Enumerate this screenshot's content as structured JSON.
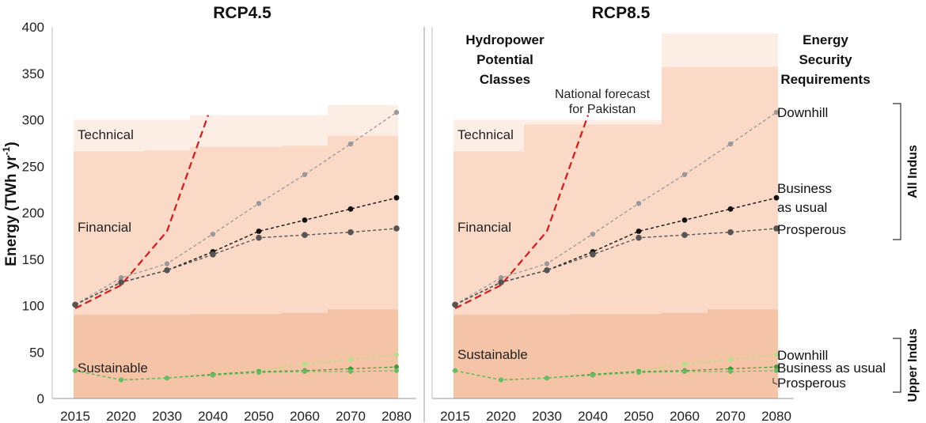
{
  "chart_data": {
    "type": "line",
    "ylabel": "Energy (TWh yr",
    "ylabel_sup": "-1",
    "ylabel_close": ")",
    "ylim": [
      0,
      400
    ],
    "yticks": [
      0,
      50,
      100,
      150,
      200,
      250,
      300,
      350,
      400
    ],
    "categories": [
      "2015",
      "2020",
      "2030",
      "2040",
      "2050",
      "2060",
      "2070",
      "2080"
    ],
    "colors": {
      "technical": "#fdeee5",
      "financial": "#fad9c6",
      "sustainable": "#f5c4a6",
      "forecast": "#d7191c",
      "downhill": "#999999",
      "business": "#111111",
      "prosperous": "#555555",
      "green_light": "#b2df8a",
      "green_mid": "#66bd63",
      "green_dark": "#4a9a3a"
    },
    "band_labels": {
      "technical": "Technical",
      "financial": "Financial",
      "sustainable": "Sustainable"
    },
    "forecast_label": [
      "National forecast",
      "for Pakistan"
    ],
    "classes_label": [
      "Hydropower",
      "Potential",
      "Classes"
    ],
    "requirements_label": [
      "Energy",
      "Security",
      "Requirements"
    ],
    "scenario_labels": {
      "all_downhill": "Downhill",
      "all_business": [
        "Business",
        "as usual"
      ],
      "all_prosperous": "Prosperous",
      "upper_downhill": "Downhill",
      "upper_business": "Business as usual",
      "upper_prosperous": "Prosperous"
    },
    "region_labels": {
      "all": "All Indus",
      "upper": "Upper Indus"
    },
    "forecast": {
      "x": [
        "2015",
        "2020",
        "2030",
        "2040"
      ],
      "values": [
        97,
        122,
        180,
        305
      ]
    },
    "series": [
      {
        "name": "All Indus Downhill",
        "values": [
          101,
          130,
          145,
          177,
          210,
          241,
          274,
          308
        ]
      },
      {
        "name": "All Indus Business as usual",
        "values": [
          101,
          125,
          138,
          158,
          180,
          192,
          204,
          216
        ]
      },
      {
        "name": "All Indus Prosperous",
        "values": [
          101,
          125,
          138,
          155,
          173,
          176,
          179,
          183
        ]
      },
      {
        "name": "Upper Indus Downhill",
        "values": [
          30,
          20,
          22,
          26,
          30,
          37,
          42,
          47
        ]
      },
      {
        "name": "Upper Indus Business as usual",
        "values": [
          30,
          20,
          22,
          26,
          29,
          30,
          32,
          34
        ]
      },
      {
        "name": "Upper Indus Prosperous",
        "values": [
          30,
          20,
          22,
          25,
          28,
          29,
          29,
          30
        ]
      }
    ],
    "panels": [
      {
        "title": "RCP4.5",
        "bands": {
          "sustainable": [
            90,
            90,
            90,
            91,
            91,
            92,
            96,
            96
          ],
          "financial": [
            266,
            266,
            267,
            271,
            271,
            272,
            283,
            283
          ],
          "technical": [
            300,
            300,
            300,
            305,
            305,
            305,
            316,
            316
          ]
        }
      },
      {
        "title": "RCP8.5",
        "bands": {
          "sustainable": [
            90,
            90,
            90,
            91,
            91,
            92,
            96,
            96
          ],
          "financial": [
            266,
            266,
            295,
            295,
            295,
            357,
            357,
            357
          ],
          "technical": [
            300,
            300,
            300,
            300,
            300,
            393,
            393,
            393
          ]
        }
      }
    ]
  }
}
